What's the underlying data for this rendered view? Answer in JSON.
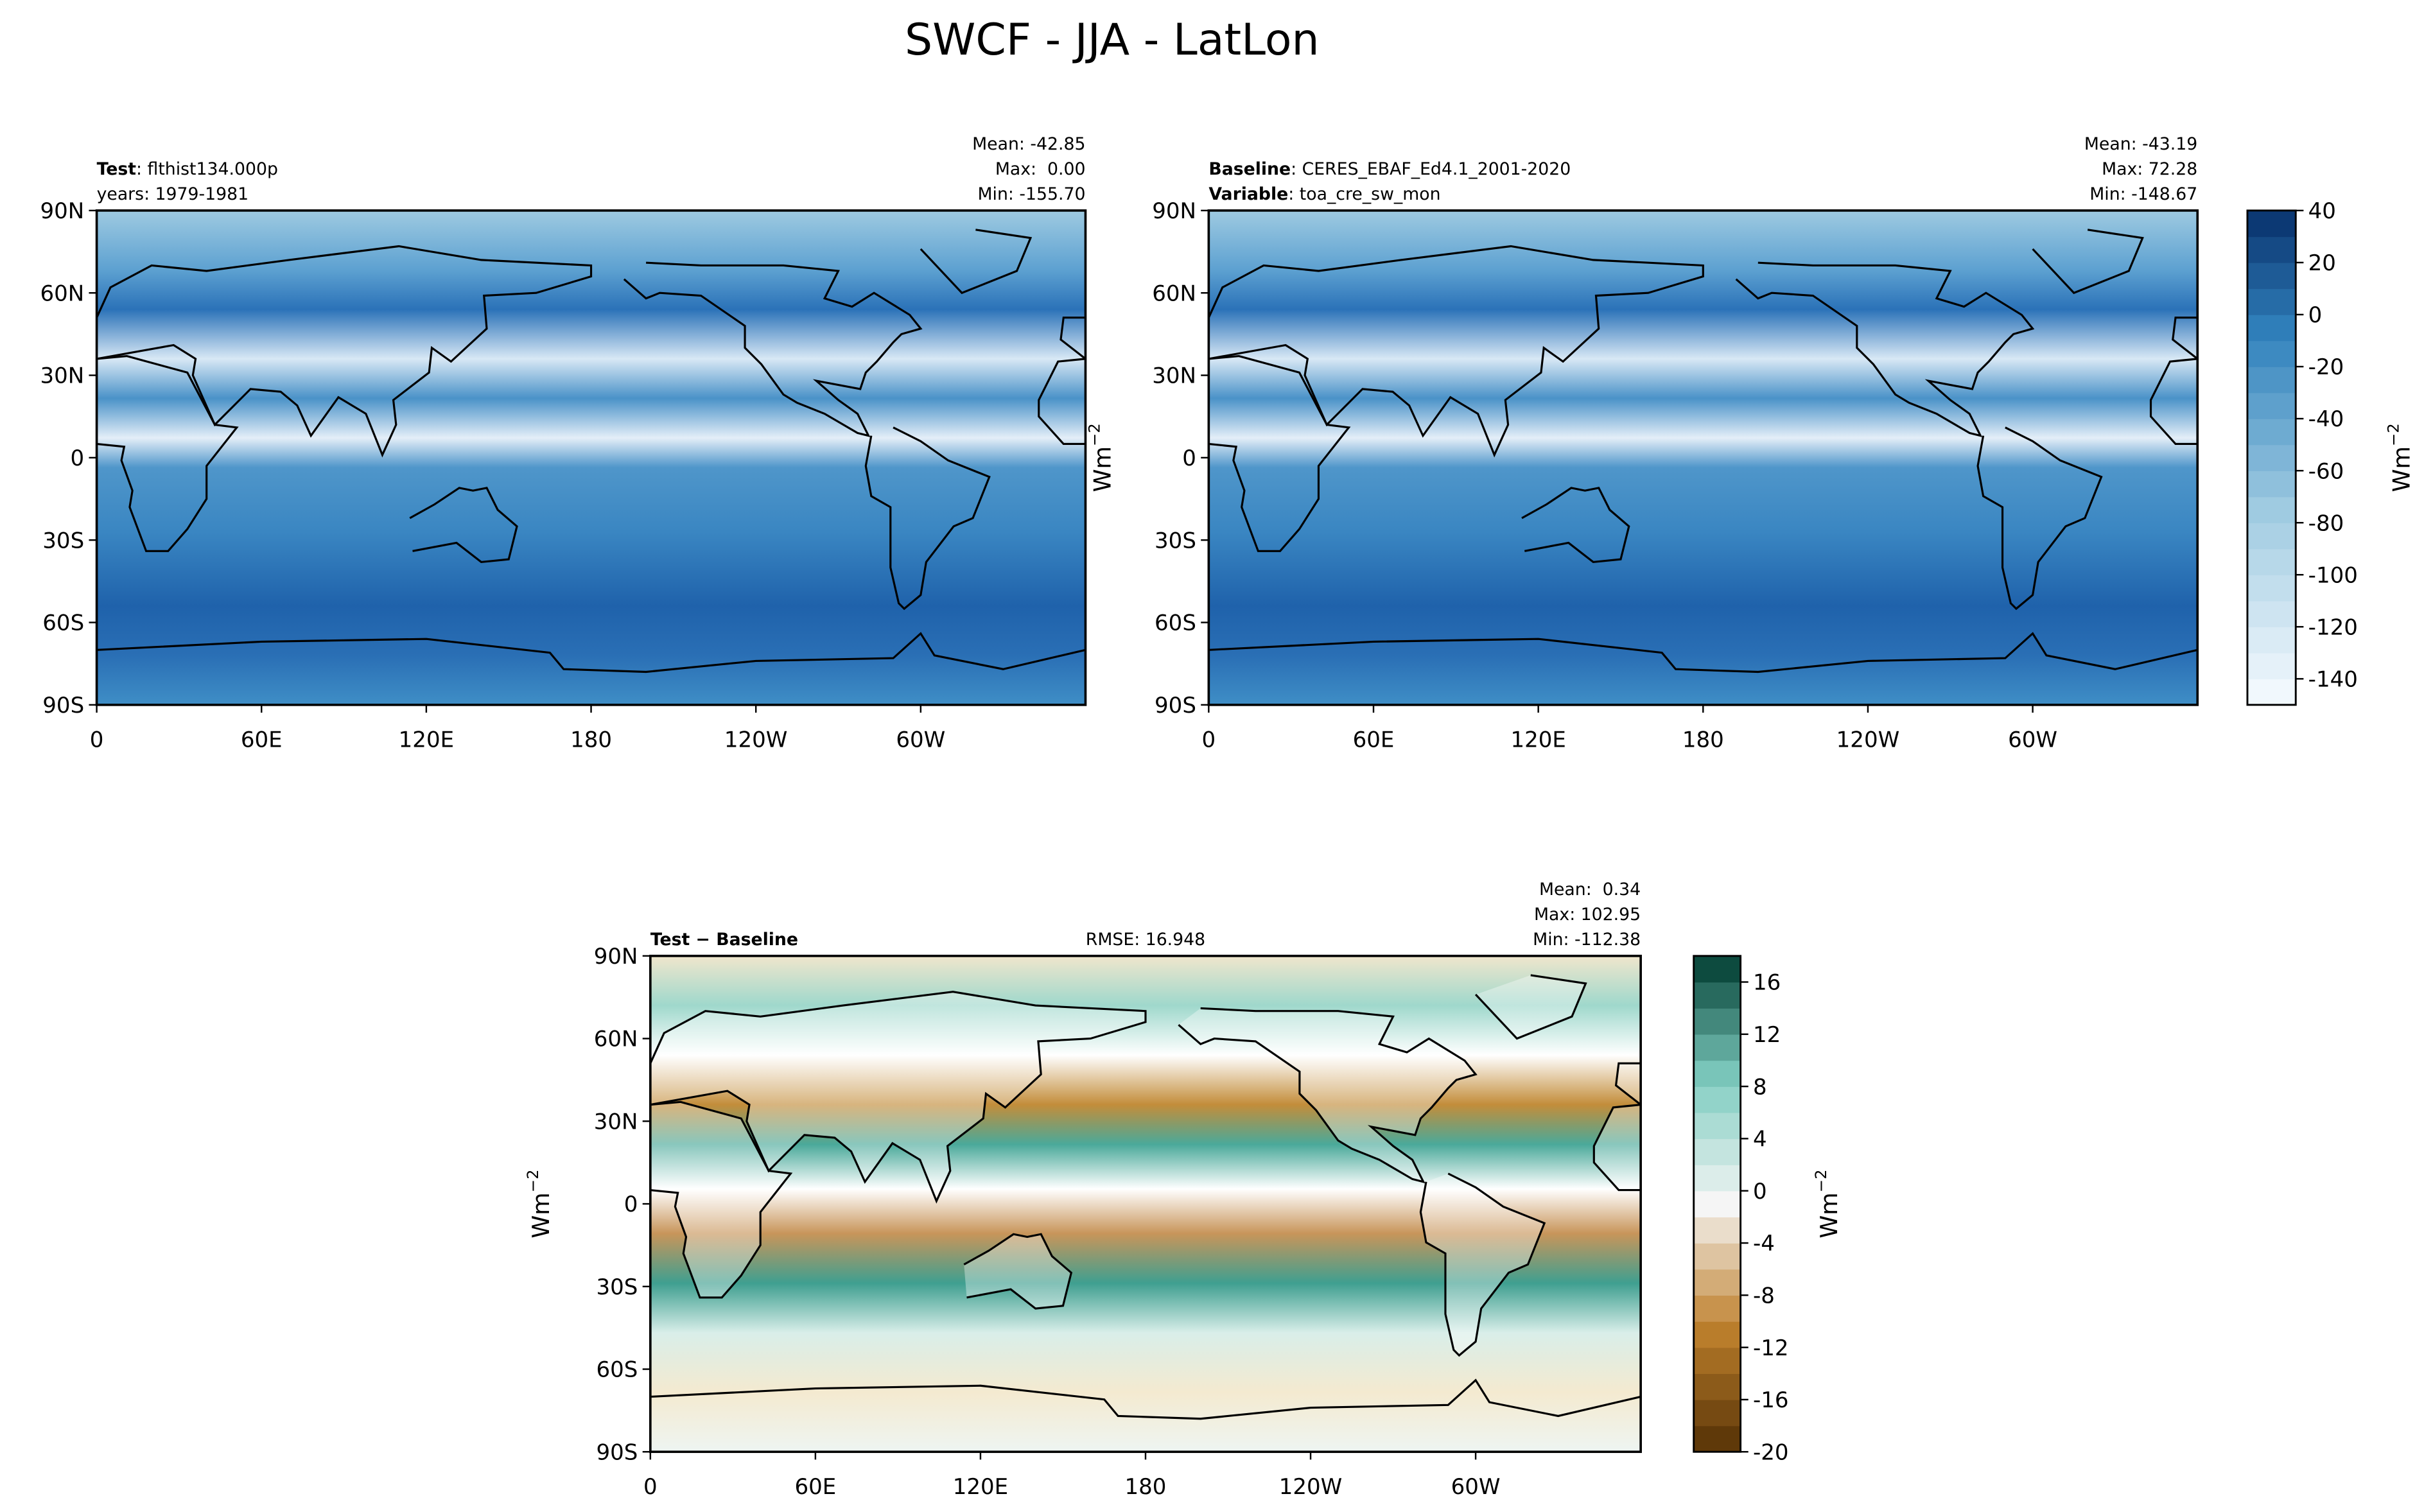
{
  "title": "SWCF - JJA - LatLon",
  "map_axes": {
    "xticks": [
      "0",
      "60E",
      "120E",
      "180",
      "120W",
      "60W"
    ],
    "yticks": [
      "90N",
      "60N",
      "30N",
      "0",
      "30S",
      "60S",
      "90S"
    ]
  },
  "panels": [
    {
      "lines": [
        {
          "label": "Test",
          "text": ": flthist134.000p"
        },
        {
          "label": "",
          "text": "years: 1979-1981"
        }
      ],
      "stats": [
        "Mean: -42.85",
        "Max:  0.00",
        "Min: -155.70"
      ]
    },
    {
      "lines": [
        {
          "label": "Baseline",
          "text": ": CERES_EBAF_Ed4.1_2001-2020"
        },
        {
          "label": "Variable",
          "text": ": toa_cre_sw_mon"
        }
      ],
      "stats": [
        "Mean: -43.19",
        "Max: 72.28",
        "Min: -148.67"
      ],
      "ylabel": {
        "unit": "Wm",
        "exp": "−2"
      }
    },
    {
      "lines": [
        {
          "label": "Test − Baseline",
          "text": ""
        }
      ],
      "center": "RMSE: 16.948",
      "stats": [
        "Mean:  0.34",
        "Max: 102.95",
        "Min: -112.38"
      ],
      "ylabel": {
        "unit": "Wm",
        "exp": "−2"
      }
    }
  ],
  "colorbars": [
    {
      "lim": [
        -150,
        40
      ],
      "ticks": [
        40,
        20,
        0,
        -20,
        -40,
        -60,
        -80,
        -100,
        -120,
        -140
      ],
      "label": {
        "unit": "Wm",
        "exp": "−2"
      }
    },
    {
      "lim": [
        -20,
        18
      ],
      "ticks": [
        16,
        12,
        8,
        4,
        0,
        -4,
        -8,
        -12,
        -16,
        -20
      ],
      "label": {
        "unit": "Wm",
        "exp": "−2"
      }
    }
  ]
}
